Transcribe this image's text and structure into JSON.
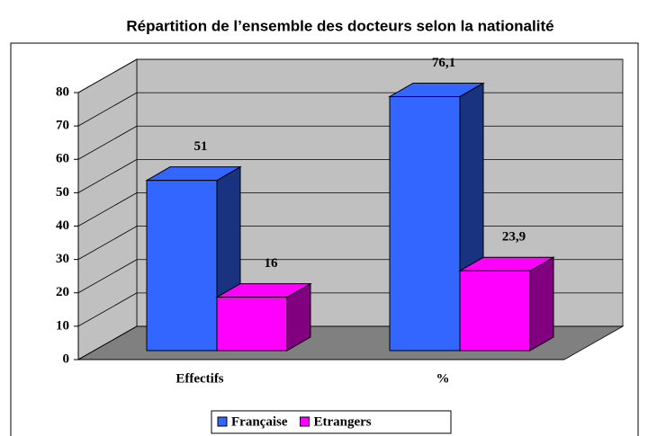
{
  "chart_data": {
    "type": "bar3d",
    "title": "Répartition de l’ensemble des docteurs selon la nationalité",
    "categories": [
      "Effectifs",
      "%"
    ],
    "series": [
      {
        "name": "Française",
        "color": "#3366ff",
        "side_color": "#1a3380",
        "values": [
          51,
          76.1
        ],
        "value_labels": [
          "51",
          "76,1"
        ]
      },
      {
        "name": "Etrangers",
        "color": "#ff00ff",
        "side_color": "#800080",
        "values": [
          16,
          23.9
        ],
        "value_labels": [
          "16",
          "23,9"
        ]
      }
    ],
    "ylim": [
      0,
      80
    ],
    "yticks": [
      0,
      10,
      20,
      30,
      40,
      50,
      60,
      70,
      80
    ],
    "grid": true,
    "legend": "bottom"
  }
}
